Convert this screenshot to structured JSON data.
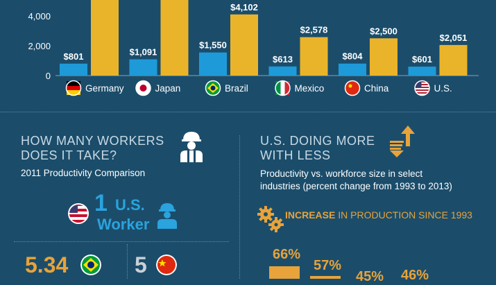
{
  "chart_data": {
    "type": "bar",
    "categories": [
      "Germany",
      "Japan",
      "Brazil",
      "Mexico",
      "China",
      "U.S."
    ],
    "series": [
      {
        "values": [
          801,
          1091,
          1550,
          613,
          804,
          601
        ]
      },
      {
        "values": [
          null,
          null,
          4102,
          2578,
          2500,
          2051
        ]
      }
    ],
    "bar_labels": {
      "blue": [
        "$801",
        "$1,091",
        "$1,550",
        "$613",
        "$804",
        "$601"
      ],
      "gold": [
        "",
        "",
        "$4,102",
        "$2,578",
        "$2,500",
        "$2,051"
      ]
    },
    "yticks": [
      "4,000",
      "2,000",
      "0"
    ],
    "ylim": [
      0,
      4800
    ],
    "colors": {
      "blue": "#1e9ad8",
      "gold": "#eab42a"
    }
  },
  "left_panel": {
    "title_line1": "HOW MANY WORKERS",
    "title_line2": "DOES IT TAKE?",
    "subtitle": "2011 Productivity Comparison",
    "us_count": "1",
    "us_label": "U.S.",
    "worker_label": "Worker",
    "brazil_value": "5.34",
    "china_value": "5"
  },
  "right_panel": {
    "title_line1": "U.S. DOING MORE",
    "title_line2": "WITH LESS",
    "subtitle_line1": "Productivity vs. workforce size in select",
    "subtitle_line2": "industries (percent change from 1993 to 2013)",
    "increase_bold": "INCREASE",
    "increase_rest": " IN PRODUCTION SINCE 1993",
    "pcts": [
      "66%",
      "57%",
      "45%",
      "46%"
    ]
  },
  "icons": [
    "worker-icon",
    "productivity-arrows-icon",
    "gears-icon"
  ]
}
